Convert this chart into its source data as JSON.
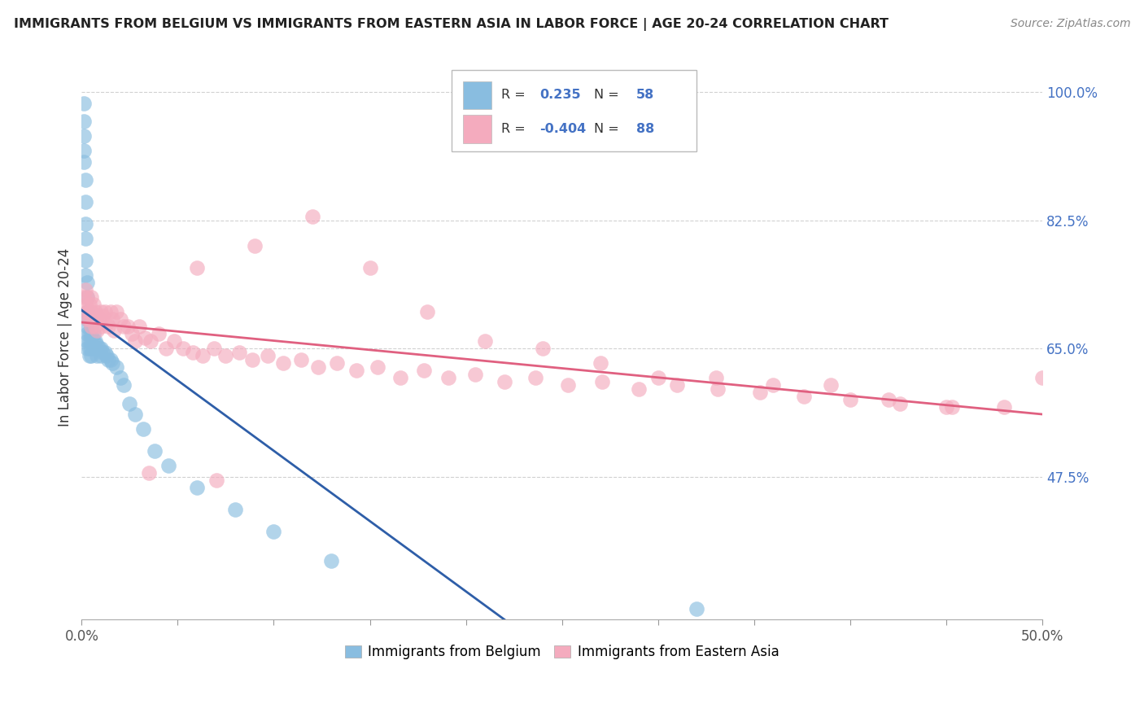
{
  "title": "IMMIGRANTS FROM BELGIUM VS IMMIGRANTS FROM EASTERN ASIA IN LABOR FORCE | AGE 20-24 CORRELATION CHART",
  "source": "Source: ZipAtlas.com",
  "ylabel": "In Labor Force | Age 20-24",
  "legend_label1": "Immigrants from Belgium",
  "legend_label2": "Immigrants from Eastern Asia",
  "R1": 0.235,
  "N1": 58,
  "R2": -0.404,
  "N2": 88,
  "xlim": [
    0.0,
    0.5
  ],
  "ylim": [
    0.28,
    1.05
  ],
  "color_blue": "#89BDE0",
  "color_pink": "#F4ABBE",
  "trendline_blue": "#2E5EA8",
  "trendline_pink": "#E06080",
  "blue_x": [
    0.001,
    0.001,
    0.001,
    0.001,
    0.001,
    0.002,
    0.002,
    0.002,
    0.002,
    0.002,
    0.002,
    0.003,
    0.003,
    0.003,
    0.003,
    0.003,
    0.003,
    0.003,
    0.003,
    0.004,
    0.004,
    0.004,
    0.004,
    0.004,
    0.005,
    0.005,
    0.005,
    0.005,
    0.005,
    0.006,
    0.006,
    0.006,
    0.007,
    0.007,
    0.008,
    0.008,
    0.009,
    0.01,
    0.01,
    0.011,
    0.012,
    0.013,
    0.014,
    0.015,
    0.016,
    0.018,
    0.02,
    0.022,
    0.025,
    0.028,
    0.032,
    0.038,
    0.045,
    0.06,
    0.08,
    0.1,
    0.13,
    0.32
  ],
  "blue_y": [
    0.985,
    0.96,
    0.94,
    0.92,
    0.905,
    0.88,
    0.85,
    0.82,
    0.8,
    0.77,
    0.75,
    0.74,
    0.72,
    0.7,
    0.69,
    0.68,
    0.67,
    0.66,
    0.65,
    0.69,
    0.67,
    0.66,
    0.65,
    0.64,
    0.68,
    0.67,
    0.66,
    0.65,
    0.64,
    0.67,
    0.66,
    0.65,
    0.66,
    0.65,
    0.655,
    0.64,
    0.65,
    0.65,
    0.64,
    0.645,
    0.645,
    0.64,
    0.635,
    0.635,
    0.63,
    0.625,
    0.61,
    0.6,
    0.575,
    0.56,
    0.54,
    0.51,
    0.49,
    0.46,
    0.43,
    0.4,
    0.36,
    0.295
  ],
  "pink_x": [
    0.001,
    0.002,
    0.002,
    0.003,
    0.003,
    0.003,
    0.004,
    0.004,
    0.004,
    0.005,
    0.005,
    0.005,
    0.006,
    0.006,
    0.007,
    0.007,
    0.008,
    0.008,
    0.009,
    0.01,
    0.01,
    0.011,
    0.012,
    0.013,
    0.014,
    0.015,
    0.016,
    0.017,
    0.018,
    0.02,
    0.022,
    0.024,
    0.026,
    0.028,
    0.03,
    0.033,
    0.036,
    0.04,
    0.044,
    0.048,
    0.053,
    0.058,
    0.063,
    0.069,
    0.075,
    0.082,
    0.089,
    0.097,
    0.105,
    0.114,
    0.123,
    0.133,
    0.143,
    0.154,
    0.166,
    0.178,
    0.191,
    0.205,
    0.22,
    0.236,
    0.253,
    0.271,
    0.29,
    0.31,
    0.331,
    0.353,
    0.376,
    0.4,
    0.426,
    0.453,
    0.06,
    0.09,
    0.12,
    0.15,
    0.18,
    0.21,
    0.24,
    0.27,
    0.3,
    0.33,
    0.36,
    0.39,
    0.42,
    0.45,
    0.48,
    0.5,
    0.035,
    0.07
  ],
  "pink_y": [
    0.72,
    0.73,
    0.71,
    0.72,
    0.7,
    0.69,
    0.71,
    0.7,
    0.69,
    0.72,
    0.7,
    0.68,
    0.71,
    0.69,
    0.7,
    0.68,
    0.695,
    0.675,
    0.69,
    0.7,
    0.68,
    0.695,
    0.7,
    0.685,
    0.68,
    0.7,
    0.69,
    0.675,
    0.7,
    0.69,
    0.68,
    0.68,
    0.67,
    0.66,
    0.68,
    0.665,
    0.66,
    0.67,
    0.65,
    0.66,
    0.65,
    0.645,
    0.64,
    0.65,
    0.64,
    0.645,
    0.635,
    0.64,
    0.63,
    0.635,
    0.625,
    0.63,
    0.62,
    0.625,
    0.61,
    0.62,
    0.61,
    0.615,
    0.605,
    0.61,
    0.6,
    0.605,
    0.595,
    0.6,
    0.595,
    0.59,
    0.585,
    0.58,
    0.575,
    0.57,
    0.76,
    0.79,
    0.83,
    0.76,
    0.7,
    0.66,
    0.65,
    0.63,
    0.61,
    0.61,
    0.6,
    0.6,
    0.58,
    0.57,
    0.57,
    0.61,
    0.48,
    0.47
  ]
}
